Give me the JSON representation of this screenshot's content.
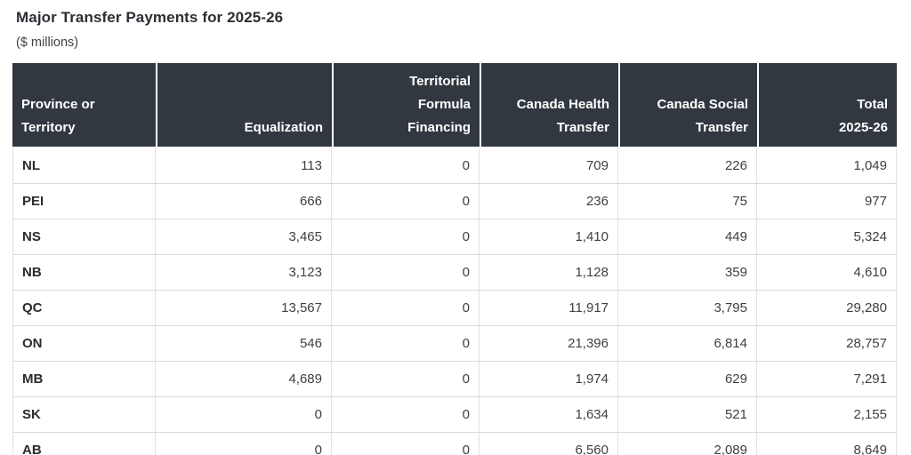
{
  "page": {
    "title": "Major Transfer Payments for 2025-26",
    "subtitle": "($ millions)"
  },
  "colors": {
    "header_background": "#31383f",
    "header_text": "#ffffff",
    "row_separator": "#d9d9d9",
    "column_separator": "#e3e3e3",
    "body_text": "#3f3f3f",
    "title_text": "#2b2f33"
  },
  "table": {
    "columns": [
      {
        "label": "Province or\nTerritory",
        "align": "left"
      },
      {
        "label": "Equalization",
        "align": "right"
      },
      {
        "label": "Territorial\nFormula\nFinancing",
        "align": "right"
      },
      {
        "label": "Canada Health\nTransfer",
        "align": "right"
      },
      {
        "label": "Canada Social\nTransfer",
        "align": "right"
      },
      {
        "label": "Total\n2025-26",
        "align": "right"
      }
    ],
    "rows": [
      {
        "province": "NL",
        "values": [
          "113",
          "0",
          "709",
          "226",
          "1,049"
        ]
      },
      {
        "province": "PEI",
        "values": [
          "666",
          "0",
          "236",
          "75",
          "977"
        ]
      },
      {
        "province": "NS",
        "values": [
          "3,465",
          "0",
          "1,410",
          "449",
          "5,324"
        ]
      },
      {
        "province": "NB",
        "values": [
          "3,123",
          "0",
          "1,128",
          "359",
          "4,610"
        ]
      },
      {
        "province": "QC",
        "values": [
          "13,567",
          "0",
          "11,917",
          "3,795",
          "29,280"
        ]
      },
      {
        "province": "ON",
        "values": [
          "546",
          "0",
          "21,396",
          "6,814",
          "28,757"
        ]
      },
      {
        "province": "MB",
        "values": [
          "4,689",
          "0",
          "1,974",
          "629",
          "7,291"
        ]
      },
      {
        "province": "SK",
        "values": [
          "0",
          "0",
          "1,634",
          "521",
          "2,155"
        ]
      },
      {
        "province": "AB",
        "values": [
          "0",
          "0",
          "6,560",
          "2,089",
          "8,649"
        ]
      }
    ]
  }
}
